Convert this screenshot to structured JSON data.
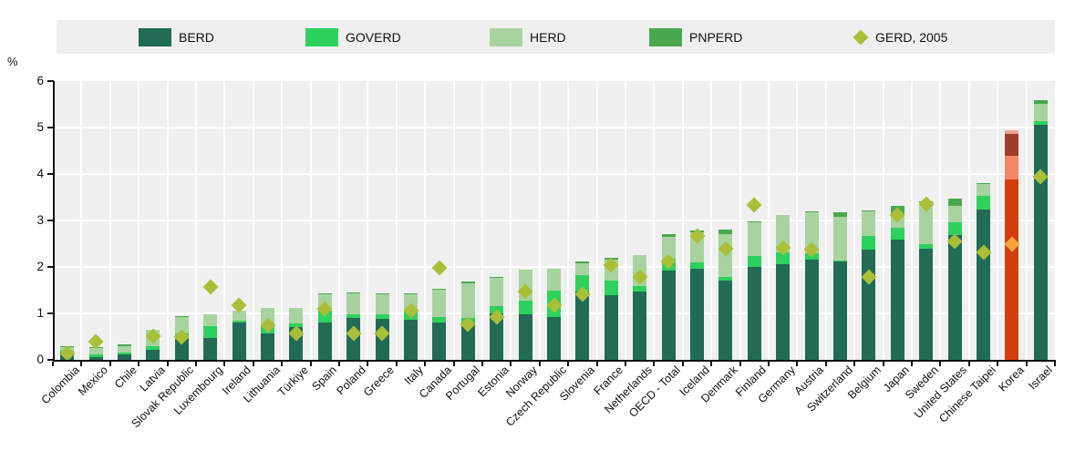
{
  "figure": {
    "y_axis_unit": "%"
  },
  "legend": {
    "items": [
      {
        "key": "berd",
        "label": "BERD",
        "shape": "square"
      },
      {
        "key": "goverd",
        "label": "GOVERD",
        "shape": "square"
      },
      {
        "key": "herd",
        "label": "HERD",
        "shape": "square"
      },
      {
        "key": "pnperd",
        "label": "PNPERD",
        "shape": "square"
      },
      {
        "key": "marker",
        "label": "GERD, 2005",
        "shape": "diamond"
      }
    ]
  },
  "chart_data": {
    "type": "bar",
    "stacked": true,
    "title": "",
    "xlabel": "",
    "ylabel": "%",
    "ylim": [
      0,
      6
    ],
    "yticks": [
      0,
      1,
      2,
      3,
      4,
      5,
      6
    ],
    "grid": true,
    "legend_position": "top",
    "highlight_category": "Korea",
    "categories": [
      "Colombia",
      "Mexico",
      "Chile",
      "Latvia",
      "Slovak Republic",
      "Luxembourg",
      "Ireland",
      "Lithuania",
      "Türkiye",
      "Spain",
      "Poland",
      "Greece",
      "Italy",
      "Canada",
      "Portugal",
      "Estonia",
      "Norway",
      "Czech Republic",
      "Slovenia",
      "France",
      "Netherlands",
      "OECD - Total",
      "Iceland",
      "Denmark",
      "Finland",
      "Germany",
      "Austria",
      "Switzerland",
      "Belgium",
      "Japan",
      "Sweden",
      "United States",
      "Chinese Taipei",
      "Korea",
      "Israel"
    ],
    "series": [
      {
        "name": "BERD",
        "key": "berd",
        "values": [
          0.18,
          0.05,
          0.11,
          0.21,
          0.45,
          0.47,
          0.8,
          0.56,
          0.71,
          0.81,
          0.9,
          0.89,
          0.86,
          0.8,
          0.8,
          1.0,
          0.99,
          0.92,
          1.47,
          1.39,
          1.47,
          1.93,
          1.97,
          1.7,
          2.01,
          2.06,
          2.16,
          2.12,
          2.37,
          2.58,
          2.39,
          2.68,
          3.24,
          3.89,
          5.05
        ]
      },
      {
        "name": "GOVERD",
        "key": "goverd",
        "values": [
          0.02,
          0.07,
          0.05,
          0.09,
          0.12,
          0.25,
          0.05,
          0.17,
          0.07,
          0.24,
          0.09,
          0.1,
          0.18,
          0.12,
          0.1,
          0.16,
          0.28,
          0.58,
          0.36,
          0.31,
          0.11,
          0.25,
          0.12,
          0.08,
          0.23,
          0.25,
          0.13,
          0.02,
          0.29,
          0.26,
          0.1,
          0.28,
          0.29,
          0.51,
          0.08
        ]
      },
      {
        "name": "HERD",
        "key": "herd",
        "values": [
          0.08,
          0.15,
          0.13,
          0.35,
          0.36,
          0.26,
          0.21,
          0.39,
          0.34,
          0.38,
          0.45,
          0.44,
          0.37,
          0.6,
          0.75,
          0.6,
          0.67,
          0.46,
          0.24,
          0.46,
          0.68,
          0.46,
          0.66,
          0.93,
          0.74,
          0.81,
          0.88,
          0.93,
          0.53,
          0.29,
          0.91,
          0.36,
          0.26,
          0.47,
          0.38
        ]
      },
      {
        "name": "PNPERD",
        "key": "pnperd",
        "values": [
          0.01,
          0.01,
          0.04,
          0.0,
          0.01,
          0.0,
          0.0,
          0.0,
          0.0,
          0.01,
          0.01,
          0.01,
          0.03,
          0.01,
          0.03,
          0.02,
          0.0,
          0.0,
          0.05,
          0.03,
          0.0,
          0.07,
          0.03,
          0.09,
          0.01,
          0.0,
          0.03,
          0.11,
          0.02,
          0.18,
          0.02,
          0.15,
          0.01,
          0.08,
          0.08
        ]
      }
    ],
    "markers": {
      "name": "GERD, 2005",
      "values": [
        0.14,
        0.4,
        null,
        0.51,
        0.49,
        1.56,
        1.18,
        0.75,
        0.56,
        1.1,
        0.56,
        0.56,
        1.05,
        1.98,
        0.76,
        0.92,
        1.48,
        1.17,
        1.41,
        2.04,
        1.79,
        2.12,
        2.66,
        2.39,
        3.33,
        2.42,
        2.37,
        null,
        1.78,
        3.12,
        3.35,
        2.55,
        2.32,
        2.5,
        3.94
      ]
    },
    "colors": {
      "berd": "#226b55",
      "goverd": "#2ed05e",
      "herd": "#a8d3a0",
      "pnperd": "#4aa84e",
      "marker": "#a9bf3a",
      "korea": {
        "berd": "#d53c0e",
        "goverd": "#f4876a",
        "herd": "#9e3d2e",
        "pnperd": "#eda394",
        "marker": "#f2a53a"
      },
      "plot_background": "#f0f0f0",
      "legend_background": "#efefef",
      "gridline": "#ffffff",
      "axis": "#111111"
    }
  }
}
